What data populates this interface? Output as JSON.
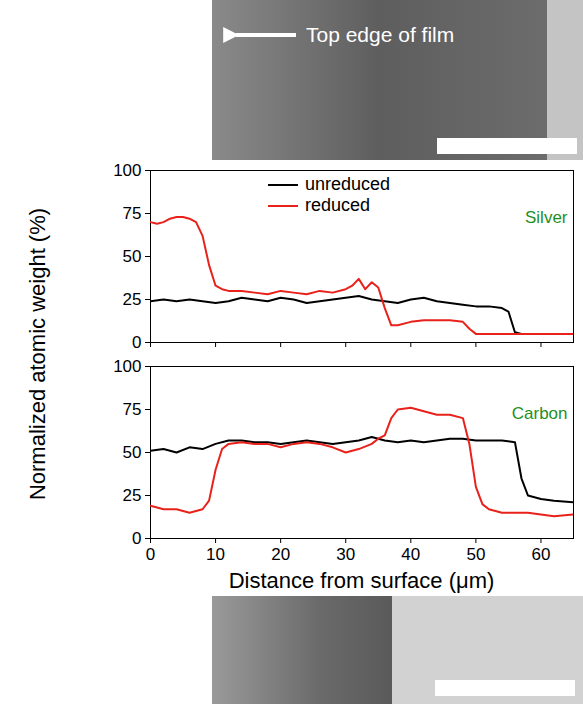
{
  "annotation": "Top edge of film",
  "ylabel": "Normalized atomic weight (%)",
  "chart_data": [
    {
      "type": "line",
      "label": "Silver",
      "legend": "top",
      "tick_labels": "y",
      "xlim": [
        0,
        65
      ],
      "xticks": [
        0,
        10,
        20,
        30,
        40,
        50,
        60
      ],
      "ylim": [
        0,
        100
      ],
      "yticks": [
        0,
        25,
        50,
        75,
        100
      ],
      "series": [
        {
          "name": "unreduced",
          "color": "#000000",
          "x": [
            0,
            2,
            4,
            6,
            8,
            10,
            12,
            14,
            16,
            18,
            20,
            22,
            24,
            26,
            28,
            30,
            32,
            34,
            36,
            38,
            40,
            42,
            44,
            46,
            48,
            50,
            52,
            54,
            55,
            56,
            57,
            60,
            62,
            65
          ],
          "values": [
            24,
            25,
            24,
            25,
            24,
            23,
            24,
            26,
            25,
            24,
            26,
            25,
            23,
            24,
            25,
            26,
            27,
            25,
            24,
            23,
            25,
            26,
            24,
            23,
            22,
            21,
            21,
            20,
            18,
            6,
            5,
            5,
            5,
            5
          ]
        },
        {
          "name": "reduced",
          "color": "#e8221b",
          "x": [
            0,
            1,
            2,
            3,
            4,
            5,
            6,
            7,
            8,
            9,
            10,
            11,
            12,
            14,
            16,
            18,
            20,
            22,
            24,
            26,
            28,
            30,
            31,
            32,
            33,
            34,
            35,
            36,
            37,
            38,
            40,
            42,
            44,
            46,
            48,
            49,
            50,
            52,
            55,
            60,
            65
          ],
          "values": [
            70,
            69,
            70,
            72,
            73,
            73,
            72,
            70,
            62,
            45,
            33,
            31,
            30,
            30,
            29,
            28,
            30,
            29,
            28,
            30,
            29,
            31,
            33,
            37,
            31,
            35,
            32,
            20,
            10,
            10,
            12,
            13,
            13,
            13,
            12,
            8,
            5,
            5,
            5,
            5,
            5
          ]
        }
      ]
    },
    {
      "type": "line",
      "label": "Carbon",
      "xlabel": "Distance from surface (μm)",
      "xlim": [
        0,
        65
      ],
      "xticks": [
        0,
        10,
        20,
        30,
        40,
        50,
        60
      ],
      "ylim": [
        0,
        100
      ],
      "yticks": [
        0,
        25,
        50,
        75,
        100
      ],
      "series": [
        {
          "name": "unreduced",
          "color": "#000000",
          "x": [
            0,
            2,
            4,
            6,
            8,
            10,
            12,
            14,
            16,
            18,
            20,
            22,
            24,
            26,
            28,
            30,
            32,
            34,
            36,
            38,
            40,
            42,
            44,
            46,
            48,
            50,
            52,
            54,
            56,
            57,
            58,
            60,
            62,
            65
          ],
          "values": [
            51,
            52,
            50,
            53,
            52,
            55,
            57,
            57,
            56,
            56,
            55,
            56,
            57,
            56,
            55,
            56,
            57,
            59,
            57,
            56,
            57,
            56,
            57,
            58,
            58,
            57,
            57,
            57,
            56,
            35,
            25,
            23,
            22,
            21
          ]
        },
        {
          "name": "reduced",
          "color": "#e8221b",
          "x": [
            0,
            2,
            4,
            6,
            8,
            9,
            10,
            11,
            12,
            14,
            16,
            18,
            20,
            22,
            24,
            26,
            28,
            30,
            32,
            34,
            35,
            36,
            37,
            38,
            40,
            42,
            44,
            46,
            48,
            49,
            50,
            51,
            52,
            54,
            56,
            58,
            60,
            62,
            65
          ],
          "values": [
            19,
            17,
            17,
            15,
            17,
            22,
            40,
            52,
            55,
            56,
            55,
            55,
            53,
            55,
            56,
            55,
            53,
            50,
            52,
            55,
            58,
            60,
            70,
            75,
            76,
            74,
            72,
            72,
            70,
            55,
            30,
            20,
            17,
            15,
            15,
            15,
            14,
            13,
            14
          ]
        }
      ]
    }
  ]
}
